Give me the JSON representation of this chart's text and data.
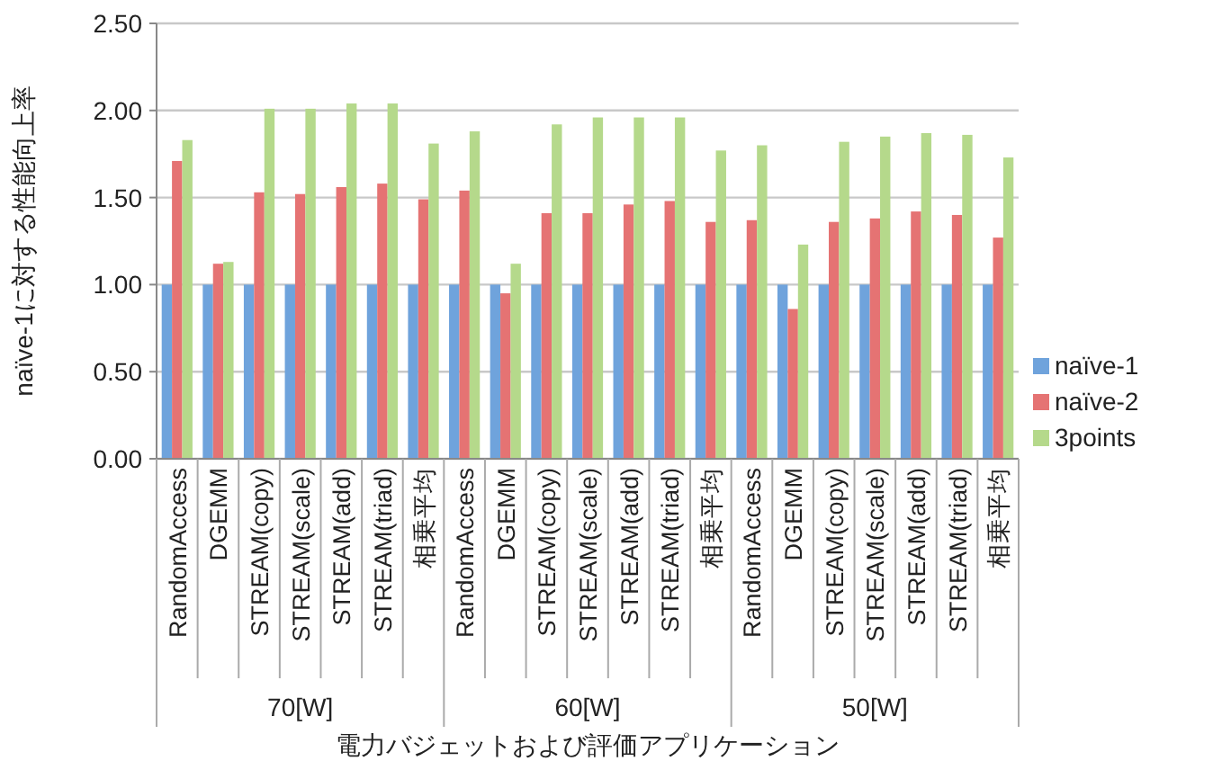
{
  "chart_data": {
    "type": "bar",
    "ylabel": "naïve-1に対する性能向上率",
    "xlabel": "電力バジェットおよび評価アプリケーション",
    "categories": [
      "RandomAccess",
      "DGEMM",
      "STREAM(copy)",
      "STREAM(scale)",
      "STREAM(add)",
      "STREAM(triad)",
      "相乗平均",
      "RandomAccess",
      "DGEMM",
      "STREAM(copy)",
      "STREAM(scale)",
      "STREAM(add)",
      "STREAM(triad)",
      "相乗平均",
      "RandomAccess",
      "DGEMM",
      "STREAM(copy)",
      "STREAM(scale)",
      "STREAM(add)",
      "STREAM(triad)",
      "相乗平均"
    ],
    "annotations": [
      "70[W]",
      "60[W]",
      "50[W]"
    ],
    "series": [
      {
        "name": "naïve-1",
        "color": "#6fa3dc",
        "values": [
          1,
          1,
          1,
          1,
          1,
          1,
          1,
          1,
          1,
          1,
          1,
          1,
          1,
          1,
          1,
          1,
          1,
          1,
          1,
          1,
          1
        ]
      },
      {
        "name": "naïve-2",
        "color": "#e57373",
        "values": [
          1.71,
          1.12,
          1.53,
          1.52,
          1.56,
          1.58,
          1.49,
          1.54,
          0.95,
          1.41,
          1.41,
          1.46,
          1.48,
          1.36,
          1.37,
          0.86,
          1.36,
          1.38,
          1.42,
          1.4,
          1.27
        ]
      },
      {
        "name": "3points",
        "color": "#b5d98b",
        "values": [
          1.83,
          1.13,
          2.01,
          2.01,
          2.04,
          2.04,
          1.81,
          1.88,
          1.12,
          1.92,
          1.96,
          1.96,
          1.96,
          1.77,
          1.8,
          1.23,
          1.82,
          1.85,
          1.87,
          1.86,
          1.73
        ]
      }
    ],
    "ylim": [
      0,
      2.5
    ],
    "yticks": [
      {
        "value": 0,
        "label": "0.00"
      },
      {
        "value": 0.5,
        "label": "0.50"
      },
      {
        "value": 1,
        "label": "1.00"
      },
      {
        "value": 1.5,
        "label": "1.50"
      },
      {
        "value": 2,
        "label": "2.00"
      },
      {
        "value": 2.5,
        "label": "2.50"
      }
    ],
    "grid": "y",
    "legend": "right"
  }
}
